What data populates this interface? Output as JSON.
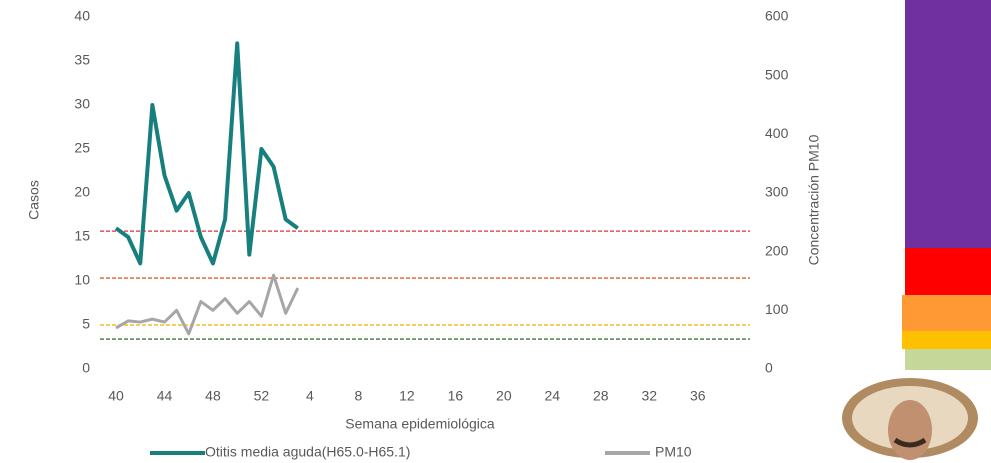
{
  "chart_data": {
    "type": "line",
    "categories": [
      40,
      null,
      null,
      null,
      44,
      null,
      null,
      null,
      48,
      null,
      null,
      null,
      52,
      null,
      null,
      null,
      4,
      null,
      null,
      null,
      8,
      null,
      null,
      null,
      12,
      null,
      null,
      null,
      16,
      null,
      null,
      null,
      20,
      null,
      null,
      null,
      24,
      null,
      null,
      null,
      28,
      null,
      null,
      null,
      32,
      null,
      null,
      null,
      36,
      null,
      null,
      null
    ],
    "x_label": "Semana epidemiológica",
    "y_label": "Casos",
    "y2_label": "Concentración PM10",
    "ylim": [
      0,
      40
    ],
    "yticks": [
      0,
      5,
      10,
      15,
      20,
      25,
      30,
      35,
      40
    ],
    "y2lim": [
      0,
      600
    ],
    "y2ticks": [
      0,
      100,
      200,
      300,
      400,
      500,
      600
    ],
    "series": [
      {
        "name": "Otitis media aguda(H65.0-H65.1)",
        "color": "#17807e",
        "axis": "y",
        "values": [
          16,
          15,
          12,
          30,
          22,
          18,
          20,
          15,
          12,
          17,
          37,
          13,
          25,
          23,
          17,
          16,
          null,
          null,
          null,
          null,
          null,
          null,
          null,
          null,
          null,
          null,
          null,
          null,
          null,
          null,
          null,
          null,
          null,
          null,
          null,
          null,
          null,
          null,
          null,
          null,
          null,
          null,
          null,
          null,
          null,
          null,
          null,
          null,
          null,
          null,
          null,
          null
        ]
      },
      {
        "name": "PM10",
        "color": "#a6a6a6",
        "axis": "y2",
        "values": [
          70,
          82,
          80,
          85,
          80,
          100,
          60,
          115,
          100,
          120,
          95,
          115,
          90,
          160,
          95,
          138,
          null,
          null,
          null,
          null,
          null,
          null,
          null,
          null,
          null,
          null,
          null,
          null,
          null,
          null,
          null,
          null,
          null,
          null,
          null,
          null,
          null,
          null,
          null,
          null,
          null,
          null,
          null,
          null,
          null,
          null,
          null,
          null,
          null,
          null,
          null,
          null
        ]
      }
    ],
    "reference_lines": [
      {
        "value": 235,
        "color": "#e03030",
        "axis": "y2"
      },
      {
        "value": 155,
        "color": "#e06020",
        "axis": "y2"
      },
      {
        "value": 75,
        "color": "#f0b000",
        "axis": "y2"
      },
      {
        "value": 51,
        "color": "#3a7a30",
        "axis": "y2"
      }
    ]
  }
}
